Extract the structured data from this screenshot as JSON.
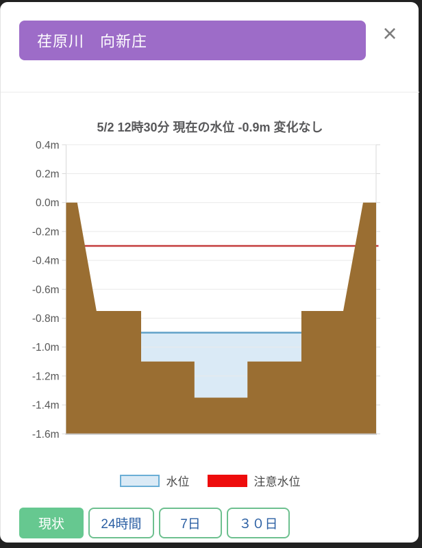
{
  "header": {
    "title": "荏原川　向新庄",
    "close_label": "×"
  },
  "chart": {
    "title": "5/2 12時30分 現在の水位 -0.9m 変化なし",
    "y_tick_labels": [
      "0.4m",
      "0.2m",
      "0.0m",
      "-0.2m",
      "-0.4m",
      "-0.6m",
      "-0.8m",
      "-1.0m",
      "-1.2m",
      "-1.4m",
      "-1.6m"
    ]
  },
  "chart_data": {
    "type": "area",
    "title": "5/2 12時30分 現在の水位 -0.9m 変化なし",
    "station": "荏原川 向新庄",
    "datetime_label": "5/2 12時30分",
    "water_level_m": -0.9,
    "trend_label": "変化なし",
    "caution_level_m": -0.3,
    "y_ticks": [
      0.4,
      0.2,
      0.0,
      -0.2,
      -0.4,
      -0.6,
      -0.8,
      -1.0,
      -1.2,
      -1.4,
      -1.6
    ],
    "y_range": [
      -1.6,
      0.4
    ],
    "y_unit": "m",
    "grid": true,
    "legend_position": "bottom",
    "ground_profile": [
      [
        0,
        0
      ],
      [
        0.036,
        0
      ],
      [
        0.098,
        -0.75
      ],
      [
        0.242,
        -0.75
      ],
      [
        0.242,
        -1.1
      ],
      [
        0.414,
        -1.1
      ],
      [
        0.414,
        -1.35
      ],
      [
        0.585,
        -1.35
      ],
      [
        0.585,
        -1.1
      ],
      [
        0.759,
        -1.1
      ],
      [
        0.759,
        -0.75
      ],
      [
        0.894,
        -0.75
      ],
      [
        0.958,
        0
      ],
      [
        1,
        0
      ]
    ],
    "water_polygon": [
      [
        0.242,
        -0.9
      ],
      [
        0.759,
        -0.9
      ],
      [
        0.759,
        -1.1
      ],
      [
        0.585,
        -1.1
      ],
      [
        0.585,
        -1.35
      ],
      [
        0.414,
        -1.35
      ],
      [
        0.414,
        -1.1
      ],
      [
        0.242,
        -1.1
      ]
    ],
    "water_surface_x": [
      0.242,
      0.759
    ]
  },
  "legend": {
    "items": [
      {
        "label": "水位",
        "swatch_color": "#daeaf6",
        "swatch_border": "#6aaed6"
      },
      {
        "label": "注意水位",
        "swatch_color": "#ee0c0c",
        "swatch_border": "#ee0c0c"
      }
    ]
  },
  "buttons": [
    {
      "label": "現状",
      "active": true
    },
    {
      "label": "24時間",
      "active": false
    },
    {
      "label": "7日",
      "active": false
    },
    {
      "label": "３０日",
      "active": false
    }
  ],
  "colors": {
    "header_bg": "#9d6cc8",
    "ground": "#9a6e32",
    "water_fill": "#daeaf6",
    "water_surface_line": "#5fa0c8",
    "caution_line": "#c43b3b",
    "legend_caution": "#ee0c0c",
    "gridline": "#e9e9e9",
    "axis_line": "#d9d9d9",
    "baseline": "#c7c7c7",
    "button_active_bg": "#66c890",
    "button_border": "#6dc08f",
    "button_text": "#2b5fa3"
  }
}
